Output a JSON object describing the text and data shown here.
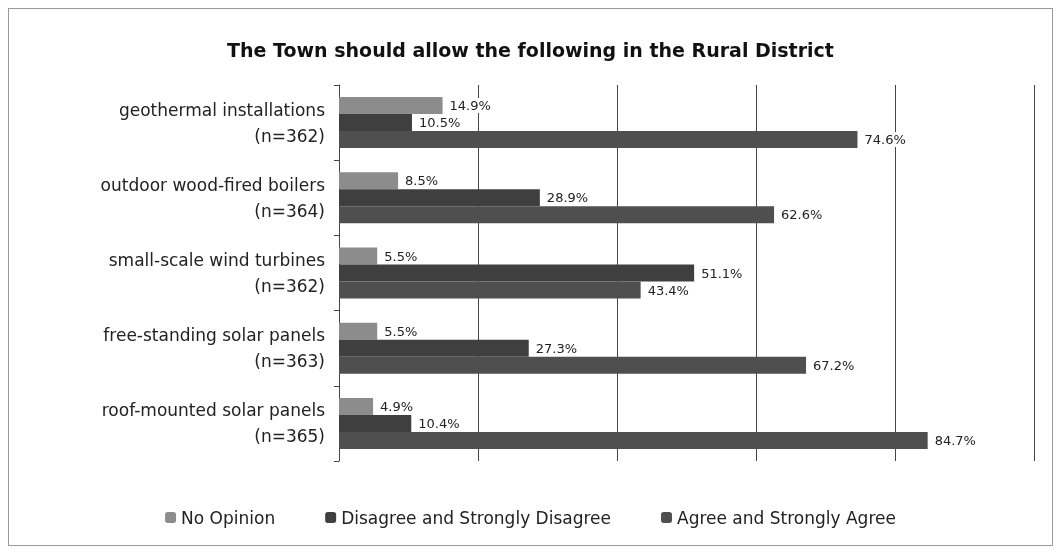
{
  "chart_data": {
    "type": "bar",
    "orientation": "horizontal",
    "title": "The Town should allow the following in the Rural District",
    "categories": [
      "geothermal installations\n(n=362)",
      "outdoor wood-fired boilers\n(n=364)",
      "small-scale wind turbines\n(n=362)",
      "free-standing solar panels\n(n=363)",
      "roof-mounted solar panels\n(n=365)"
    ],
    "series": [
      {
        "name": "No Opinion",
        "color": "#8c8c8c",
        "values": [
          14.9,
          8.5,
          5.5,
          5.5,
          4.9
        ],
        "value_labels": [
          "14.9%",
          "8.5%",
          "5.5%",
          "5.5%",
          "4.9%"
        ]
      },
      {
        "name": "Disagree and Strongly Disagree",
        "color": "#3f3f3f",
        "values": [
          10.5,
          28.9,
          51.1,
          27.3,
          10.4
        ],
        "value_labels": [
          "10.5%",
          "28.9%",
          "51.1%",
          "27.3%",
          "10.4%"
        ]
      },
      {
        "name": "Agree and Strongly Agree",
        "color": "#4f4f4f",
        "values": [
          74.6,
          62.6,
          43.4,
          67.2,
          84.7
        ],
        "value_labels": [
          "74.6%",
          "62.6%",
          "43.4%",
          "67.2%",
          "84.7%"
        ]
      }
    ],
    "tick_labels": "y",
    "grid": "x",
    "legend": "bottom"
  }
}
